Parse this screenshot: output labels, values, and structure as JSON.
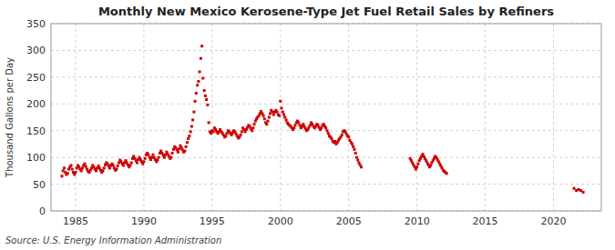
{
  "chart_data": {
    "type": "scatter",
    "title": "Monthly New Mexico Kerosene-Type Jet Fuel Retail Sales by Refiners",
    "ylabel": "Thousand Gallons per Day",
    "source": "Source: U.S. Energy Information Administration",
    "color": "#cc0000",
    "marker": "square",
    "grid": true,
    "xlim": [
      1983.2,
      2023.5
    ],
    "ylim": [
      0,
      350
    ],
    "xticks": [
      1985,
      1990,
      1995,
      2000,
      2005,
      2010,
      2015,
      2020
    ],
    "yticks": [
      0,
      50,
      100,
      150,
      200,
      250,
      300,
      350
    ],
    "x": [
      1984.0,
      1984.08,
      1984.17,
      1984.25,
      1984.33,
      1984.42,
      1984.5,
      1984.58,
      1984.67,
      1984.75,
      1984.83,
      1984.92,
      1985.0,
      1985.08,
      1985.17,
      1985.25,
      1985.33,
      1985.42,
      1985.5,
      1985.58,
      1985.67,
      1985.75,
      1985.83,
      1985.92,
      1986.0,
      1986.08,
      1986.17,
      1986.25,
      1986.33,
      1986.42,
      1986.5,
      1986.58,
      1986.67,
      1986.75,
      1986.83,
      1986.92,
      1987.0,
      1987.08,
      1987.17,
      1987.25,
      1987.33,
      1987.42,
      1987.5,
      1987.58,
      1987.67,
      1987.75,
      1987.83,
      1987.92,
      1988.0,
      1988.08,
      1988.17,
      1988.25,
      1988.33,
      1988.42,
      1988.5,
      1988.58,
      1988.67,
      1988.75,
      1988.83,
      1988.92,
      1989.0,
      1989.08,
      1989.17,
      1989.25,
      1989.33,
      1989.42,
      1989.5,
      1989.58,
      1989.67,
      1989.75,
      1989.83,
      1989.92,
      1990.0,
      1990.08,
      1990.17,
      1990.25,
      1990.33,
      1990.42,
      1990.5,
      1990.58,
      1990.67,
      1990.75,
      1990.83,
      1990.92,
      1991.0,
      1991.08,
      1991.17,
      1991.25,
      1991.33,
      1991.42,
      1991.5,
      1991.58,
      1991.67,
      1991.75,
      1991.83,
      1991.92,
      1992.0,
      1992.08,
      1992.17,
      1992.25,
      1992.33,
      1992.42,
      1992.5,
      1992.58,
      1992.67,
      1992.75,
      1992.83,
      1992.92,
      1993.0,
      1993.08,
      1993.17,
      1993.25,
      1993.33,
      1993.42,
      1993.5,
      1993.58,
      1993.67,
      1993.75,
      1993.83,
      1993.92,
      1994.0,
      1994.08,
      1994.17,
      1994.25,
      1994.33,
      1994.42,
      1994.5,
      1994.58,
      1994.67,
      1994.75,
      1994.83,
      1994.92,
      1995.0,
      1995.08,
      1995.17,
      1995.25,
      1995.33,
      1995.42,
      1995.5,
      1995.58,
      1995.67,
      1995.75,
      1995.83,
      1995.92,
      1996.0,
      1996.08,
      1996.17,
      1996.25,
      1996.33,
      1996.42,
      1996.5,
      1996.58,
      1996.67,
      1996.75,
      1996.83,
      1996.92,
      1997.0,
      1997.08,
      1997.17,
      1997.25,
      1997.33,
      1997.42,
      1997.5,
      1997.58,
      1997.67,
      1997.75,
      1997.83,
      1997.92,
      1998.0,
      1998.08,
      1998.17,
      1998.25,
      1998.33,
      1998.42,
      1998.5,
      1998.58,
      1998.67,
      1998.75,
      1998.83,
      1998.92,
      1999.0,
      1999.08,
      1999.17,
      1999.25,
      1999.33,
      1999.42,
      1999.5,
      1999.58,
      1999.67,
      1999.75,
      1999.83,
      1999.92,
      2000.0,
      2000.08,
      2000.17,
      2000.25,
      2000.33,
      2000.42,
      2000.5,
      2000.58,
      2000.67,
      2000.75,
      2000.83,
      2000.92,
      2001.0,
      2001.08,
      2001.17,
      2001.25,
      2001.33,
      2001.42,
      2001.5,
      2001.58,
      2001.67,
      2001.75,
      2001.83,
      2001.92,
      2002.0,
      2002.08,
      2002.17,
      2002.25,
      2002.33,
      2002.42,
      2002.5,
      2002.58,
      2002.67,
      2002.75,
      2002.83,
      2002.92,
      2003.0,
      2003.08,
      2003.17,
      2003.25,
      2003.33,
      2003.42,
      2003.5,
      2003.58,
      2003.67,
      2003.75,
      2003.83,
      2003.92,
      2004.0,
      2004.08,
      2004.17,
      2004.25,
      2004.33,
      2004.42,
      2004.5,
      2004.58,
      2004.67,
      2004.75,
      2004.83,
      2004.92,
      2005.0,
      2005.08,
      2005.17,
      2005.25,
      2005.33,
      2005.42,
      2005.5,
      2005.58,
      2005.67,
      2005.75,
      2005.83,
      2005.92,
      2009.5,
      2009.58,
      2009.67,
      2009.75,
      2009.83,
      2009.92,
      2010.0,
      2010.08,
      2010.17,
      2010.25,
      2010.33,
      2010.42,
      2010.5,
      2010.58,
      2010.67,
      2010.75,
      2010.83,
      2010.92,
      2011.0,
      2011.08,
      2011.17,
      2011.25,
      2011.33,
      2011.42,
      2011.5,
      2011.58,
      2011.67,
      2011.75,
      2011.83,
      2011.92,
      2012.0,
      2012.08,
      2012.17,
      2021.5,
      2021.67,
      2021.83,
      2022.0,
      2022.17
    ],
    "values": [
      65,
      75,
      80,
      72,
      68,
      70,
      78,
      82,
      85,
      78,
      72,
      68,
      72,
      80,
      85,
      82,
      78,
      75,
      80,
      85,
      88,
      83,
      78,
      74,
      72,
      76,
      80,
      85,
      82,
      78,
      75,
      80,
      84,
      80,
      76,
      72,
      75,
      80,
      86,
      90,
      88,
      84,
      80,
      85,
      88,
      85,
      80,
      76,
      78,
      84,
      90,
      95,
      92,
      88,
      85,
      90,
      94,
      90,
      86,
      82,
      85,
      90,
      98,
      102,
      98,
      94,
      90,
      96,
      100,
      96,
      92,
      88,
      92,
      98,
      105,
      108,
      105,
      100,
      96,
      100,
      105,
      100,
      96,
      92,
      95,
      100,
      108,
      112,
      108,
      104,
      100,
      105,
      110,
      106,
      102,
      98,
      100,
      108,
      115,
      120,
      118,
      114,
      110,
      116,
      122,
      118,
      114,
      110,
      112,
      120,
      128,
      135,
      140,
      148,
      158,
      170,
      185,
      205,
      220,
      235,
      242,
      260,
      285,
      308,
      248,
      225,
      215,
      208,
      198,
      165,
      148,
      145,
      150,
      148,
      155,
      152,
      148,
      145,
      148,
      152,
      148,
      145,
      142,
      138,
      140,
      145,
      150,
      148,
      145,
      142,
      146,
      150,
      148,
      144,
      140,
      136,
      138,
      142,
      148,
      155,
      152,
      148,
      152,
      156,
      160,
      158,
      154,
      150,
      155,
      162,
      168,
      172,
      175,
      178,
      182,
      186,
      182,
      178,
      172,
      165,
      162,
      168,
      175,
      182,
      188,
      185,
      180,
      185,
      188,
      185,
      180,
      178,
      205,
      192,
      185,
      180,
      175,
      170,
      165,
      162,
      160,
      158,
      155,
      152,
      155,
      160,
      165,
      168,
      165,
      160,
      155,
      158,
      162,
      158,
      154,
      150,
      152,
      156,
      160,
      165,
      162,
      158,
      155,
      158,
      162,
      160,
      156,
      152,
      155,
      160,
      162,
      158,
      155,
      150,
      145,
      140,
      138,
      135,
      130,
      128,
      130,
      125,
      128,
      132,
      135,
      138,
      142,
      148,
      150,
      148,
      144,
      140,
      138,
      132,
      128,
      125,
      120,
      115,
      108,
      100,
      95,
      90,
      86,
      82,
      98,
      94,
      90,
      86,
      82,
      78,
      82,
      88,
      94,
      98,
      102,
      106,
      102,
      98,
      94,
      90,
      86,
      82,
      85,
      90,
      94,
      98,
      102,
      100,
      96,
      92,
      88,
      84,
      80,
      76,
      74,
      72,
      70,
      42,
      38,
      40,
      38,
      35
    ]
  }
}
